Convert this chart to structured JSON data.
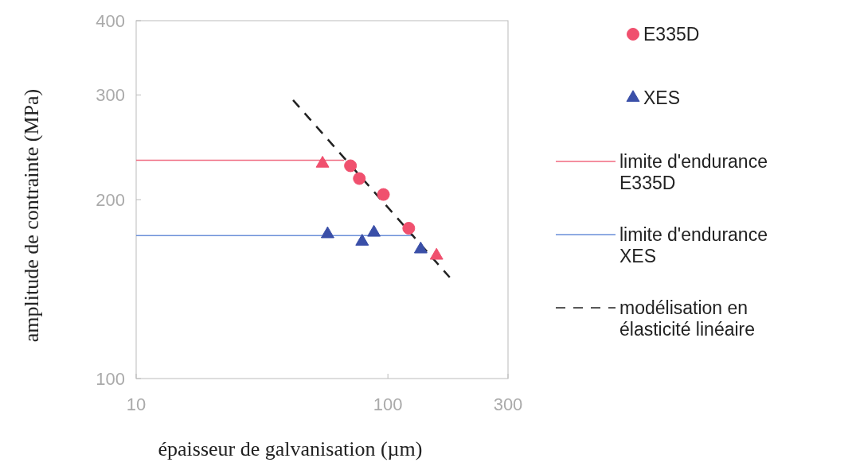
{
  "chart_data": {
    "type": "scatter",
    "xlabel": "épaisseur de galvanisation (µm)",
    "ylabel": "amplitude de contrainte (MPa)",
    "log": "xy",
    "xlim": [
      10,
      300
    ],
    "xticks": [
      10,
      100,
      300
    ],
    "ylim": [
      100,
      400
    ],
    "yticks": [
      100,
      200,
      300,
      400
    ],
    "grid": false,
    "legend": "right",
    "series": [
      {
        "name": "E335D",
        "color": "#f0506e",
        "marker": "circle",
        "x": [
          71,
          77,
          96,
          121
        ],
        "values": [
          228,
          217,
          204,
          179
        ]
      },
      {
        "name": "XES",
        "color": "#3a4fa8",
        "marker": "triangle",
        "x": [
          88,
          135
        ],
        "values": [
          176,
          165
        ]
      },
      {
        "color": "#f0506e",
        "marker": "triangle",
        "x": [
          55
        ],
        "values": [
          230
        ]
      },
      {
        "color": "#f0506e",
        "marker": "triangle",
        "x": [
          156
        ],
        "values": [
          161
        ]
      },
      {
        "color": "#3a4fa8",
        "marker": "triangle",
        "x": [
          57.6,
          79
        ],
        "values": [
          175,
          170
        ]
      },
      {
        "name": "limite d'endurance E335D",
        "type": "line",
        "color": "#f06a80",
        "marker": "none",
        "line_style": "solid",
        "x": [
          10,
          67
        ],
        "values": [
          233,
          233
        ]
      },
      {
        "name": "limite d'endurance XES",
        "type": "line",
        "color": "#6a8fd8",
        "marker": "none",
        "line_style": "solid",
        "x": [
          10,
          127
        ],
        "values": [
          174,
          174
        ]
      },
      {
        "name": "modélisation en élasticité linéaire",
        "type": "line",
        "color": "#222222",
        "marker": "none",
        "line_style": "dashed",
        "x": [
          42,
          176
        ],
        "values": [
          294,
          148
        ]
      }
    ]
  }
}
